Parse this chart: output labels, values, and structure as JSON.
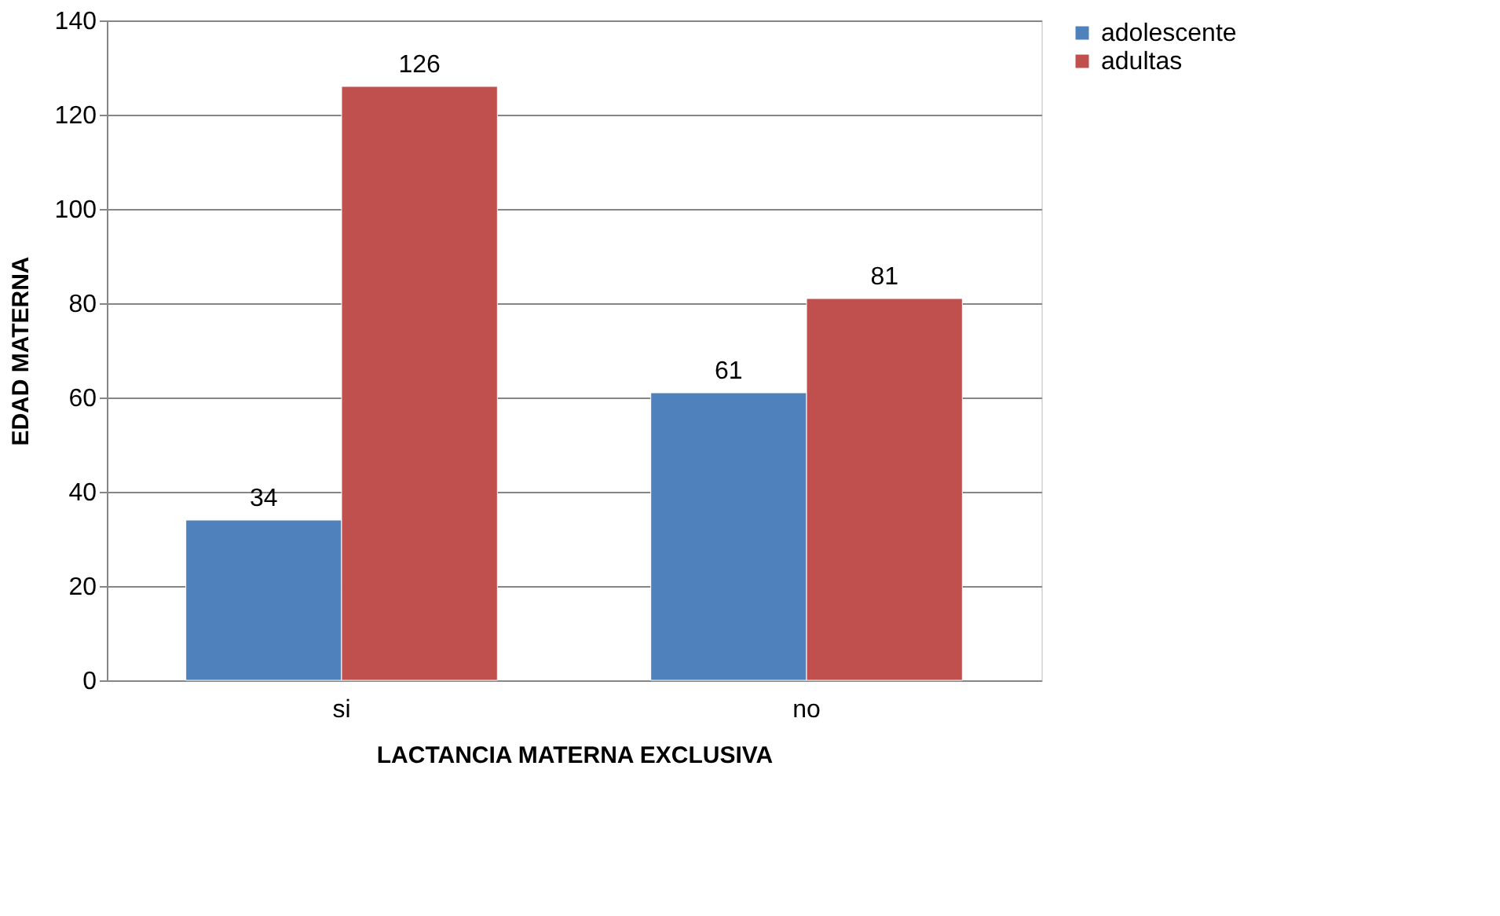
{
  "chart_data": {
    "type": "bar",
    "xlabel": "LACTANCIA MATERNA EXCLUSIVA",
    "ylabel": "EDAD MATERNA",
    "categories": [
      "si",
      "no"
    ],
    "series": [
      {
        "name": "adolescente",
        "color": "#4f81bd",
        "values": [
          34,
          61
        ]
      },
      {
        "name": "adultas",
        "color": "#c0504d",
        "values": [
          126,
          81
        ]
      }
    ],
    "ylim": [
      0,
      140
    ],
    "yticks": [
      0,
      20,
      40,
      60,
      80,
      100,
      120,
      140
    ],
    "grid": "y",
    "legend": "right",
    "data_labels": true
  }
}
